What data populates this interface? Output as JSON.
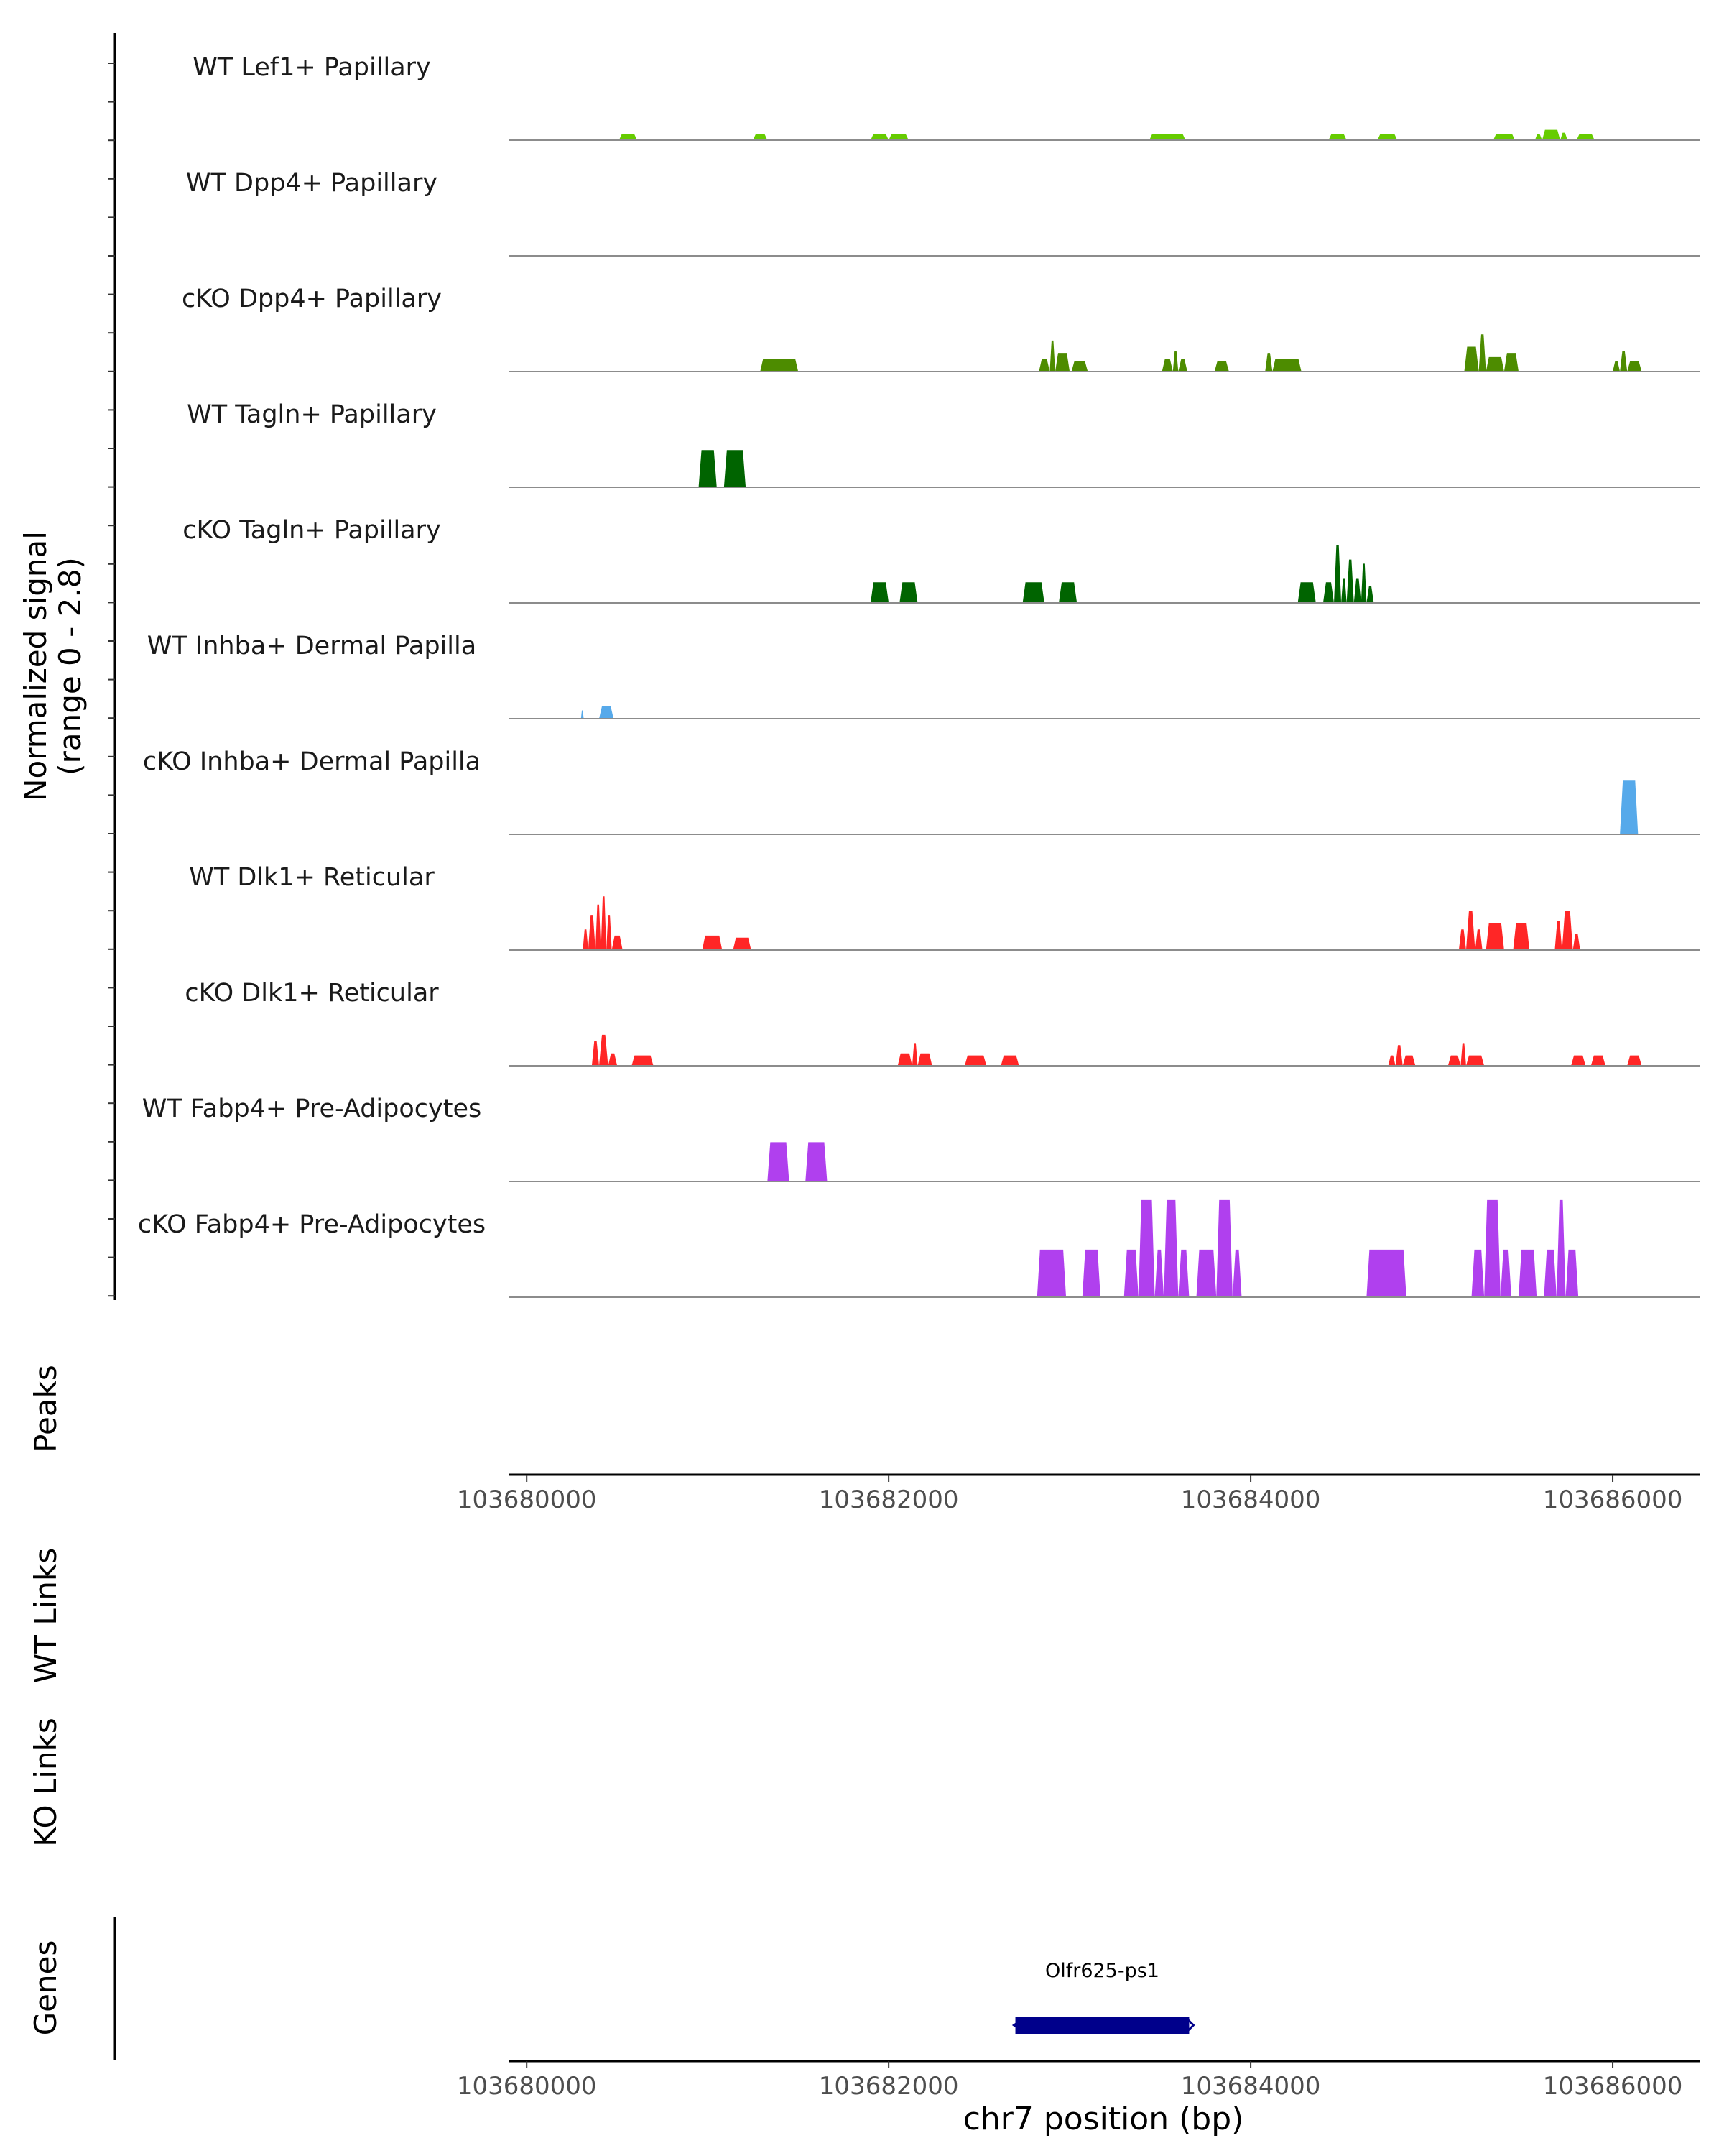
{
  "chart_data": {
    "type": "area",
    "title": "",
    "ylabel": "Normalized signal",
    "ylabel_range": "(range 0 - 2.8)",
    "xlabel": "chr7 position (bp)",
    "chromosome": "chr7",
    "xlim": [
      103679900,
      103686480
    ],
    "ylim": [
      0,
      2.8
    ],
    "x_ticks": [
      103680000,
      103682000,
      103684000,
      103686000
    ],
    "x_tick_labels": [
      "103680000",
      "103682000",
      "103684000",
      "103686000"
    ],
    "series": [
      {
        "name": "WT Lef1+ Papillary",
        "color": "#66cc00",
        "peaks": [
          [
            103680510,
            103680610,
            0.15
          ],
          [
            103681250,
            103681330,
            0.15
          ],
          [
            103681900,
            103682000,
            0.15
          ],
          [
            103682000,
            103682110,
            0.15
          ],
          [
            103683440,
            103683640,
            0.15
          ],
          [
            103684430,
            103684530,
            0.15
          ],
          [
            103684700,
            103684810,
            0.15
          ],
          [
            103685340,
            103685460,
            0.15
          ],
          [
            103685570,
            103685610,
            0.15
          ],
          [
            103685610,
            103685710,
            0.25
          ],
          [
            103685710,
            103685750,
            0.18
          ],
          [
            103685800,
            103685900,
            0.15
          ]
        ]
      },
      {
        "name": "WT Dpp4+ Papillary",
        "color": "#4d8c00",
        "peaks": []
      },
      {
        "name": "cKO Dpp4+ Papillary",
        "color": "#4d8c00",
        "peaks": [
          [
            103681290,
            103681500,
            0.3
          ],
          [
            103682830,
            103682890,
            0.3
          ],
          [
            103682890,
            103682920,
            0.75
          ],
          [
            103682920,
            103683000,
            0.45
          ],
          [
            103683010,
            103683100,
            0.25
          ],
          [
            103683510,
            103683570,
            0.3
          ],
          [
            103683570,
            103683600,
            0.5
          ],
          [
            103683600,
            103683650,
            0.3
          ],
          [
            103683800,
            103683880,
            0.25
          ],
          [
            103684080,
            103684120,
            0.45
          ],
          [
            103684120,
            103684280,
            0.3
          ],
          [
            103685180,
            103685260,
            0.6
          ],
          [
            103685260,
            103685300,
            0.9
          ],
          [
            103685300,
            103685400,
            0.35
          ],
          [
            103685400,
            103685480,
            0.45
          ],
          [
            103686000,
            103686040,
            0.25
          ],
          [
            103686040,
            103686080,
            0.5
          ],
          [
            103686080,
            103686160,
            0.25
          ]
        ]
      },
      {
        "name": "WT Tagln+ Papillary",
        "color": "#006400",
        "peaks": [
          [
            103680950,
            103681050,
            0.9
          ],
          [
            103681090,
            103681210,
            0.9
          ]
        ]
      },
      {
        "name": "cKO Tagln+ Papillary",
        "color": "#006400",
        "peaks": [
          [
            103681900,
            103682000,
            0.5
          ],
          [
            103682060,
            103682160,
            0.5
          ],
          [
            103682740,
            103682860,
            0.5
          ],
          [
            103682940,
            103683040,
            0.5
          ],
          [
            103684260,
            103684360,
            0.5
          ],
          [
            103684400,
            103684460,
            0.5
          ],
          [
            103684460,
            103684500,
            1.4
          ],
          [
            103684500,
            103684530,
            0.6
          ],
          [
            103684530,
            103684570,
            1.05
          ],
          [
            103684570,
            103684610,
            0.6
          ],
          [
            103684610,
            103684640,
            0.95
          ],
          [
            103684640,
            103684680,
            0.4
          ]
        ]
      },
      {
        "name": "WT Inhba+ Dermal Papilla",
        "color": "#56a9ea",
        "peaks": [
          [
            103680300,
            103680315,
            0.2
          ],
          [
            103680400,
            103680480,
            0.3
          ]
        ]
      },
      {
        "name": "cKO Inhba+ Dermal Papilla",
        "color": "#56a9ea",
        "peaks": [
          [
            103686040,
            103686140,
            1.3
          ]
        ]
      },
      {
        "name": "WT Dlk1+ Reticular",
        "color": "#ff2626",
        "peaks": [
          [
            103680310,
            103680340,
            0.5
          ],
          [
            103680340,
            103680380,
            0.85
          ],
          [
            103680380,
            103680410,
            1.1
          ],
          [
            103680410,
            103680440,
            1.3
          ],
          [
            103680440,
            103680470,
            0.85
          ],
          [
            103680470,
            103680530,
            0.35
          ],
          [
            103680970,
            103681080,
            0.35
          ],
          [
            103681140,
            103681240,
            0.3
          ],
          [
            103685150,
            103685190,
            0.5
          ],
          [
            103685190,
            103685240,
            0.95
          ],
          [
            103685240,
            103685280,
            0.5
          ],
          [
            103685300,
            103685400,
            0.65
          ],
          [
            103685450,
            103685540,
            0.65
          ],
          [
            103685680,
            103685720,
            0.7
          ],
          [
            103685720,
            103685780,
            0.95
          ],
          [
            103685780,
            103685820,
            0.4
          ]
        ]
      },
      {
        "name": "cKO Dlk1+ Reticular",
        "color": "#ff2626",
        "peaks": [
          [
            103680360,
            103680400,
            0.6
          ],
          [
            103680400,
            103680450,
            0.75
          ],
          [
            103680450,
            103680500,
            0.3
          ],
          [
            103680580,
            103680700,
            0.25
          ],
          [
            103682050,
            103682130,
            0.3
          ],
          [
            103682130,
            103682160,
            0.55
          ],
          [
            103682160,
            103682240,
            0.3
          ],
          [
            103682420,
            103682540,
            0.25
          ],
          [
            103682620,
            103682720,
            0.25
          ],
          [
            103684760,
            103684800,
            0.25
          ],
          [
            103684800,
            103684840,
            0.5
          ],
          [
            103684840,
            103684910,
            0.25
          ],
          [
            103685090,
            103685160,
            0.25
          ],
          [
            103685160,
            103685190,
            0.55
          ],
          [
            103685190,
            103685290,
            0.25
          ],
          [
            103685770,
            103685850,
            0.25
          ],
          [
            103685880,
            103685960,
            0.25
          ],
          [
            103686080,
            103686160,
            0.25
          ]
        ]
      },
      {
        "name": "WT Fabp4+ Pre-Adipocytes",
        "color": "#b040ee",
        "peaks": [
          [
            103681330,
            103681450,
            0.95
          ],
          [
            103681540,
            103681660,
            0.95
          ]
        ]
      },
      {
        "name": "cKO Fabp4+ Pre-Adipocytes",
        "color": "#b040ee",
        "peaks": [
          [
            103682820,
            103682980,
            1.15
          ],
          [
            103683070,
            103683170,
            1.15
          ],
          [
            103683300,
            103683380,
            1.15
          ],
          [
            103683380,
            103683470,
            2.35
          ],
          [
            103683470,
            103683520,
            1.15
          ],
          [
            103683520,
            103683600,
            2.35
          ],
          [
            103683600,
            103683660,
            1.15
          ],
          [
            103683700,
            103683810,
            1.15
          ],
          [
            103683810,
            103683900,
            2.35
          ],
          [
            103683900,
            103683950,
            1.15
          ],
          [
            103684640,
            103684860,
            1.15
          ],
          [
            103685220,
            103685290,
            1.15
          ],
          [
            103685290,
            103685380,
            2.35
          ],
          [
            103685380,
            103685440,
            1.15
          ],
          [
            103685480,
            103685580,
            1.15
          ],
          [
            103685620,
            103685690,
            1.15
          ],
          [
            103685690,
            103685740,
            2.35
          ],
          [
            103685740,
            103685810,
            1.15
          ]
        ]
      }
    ],
    "empty_tracks": [
      "Peaks",
      "WT Links",
      "KO Links"
    ],
    "genes_track_label": "Genes",
    "genes": [
      {
        "name": "Olfr625-ps1",
        "start": 103682700,
        "end": 103683660,
        "strand": "-",
        "color": "#00008b"
      }
    ]
  }
}
